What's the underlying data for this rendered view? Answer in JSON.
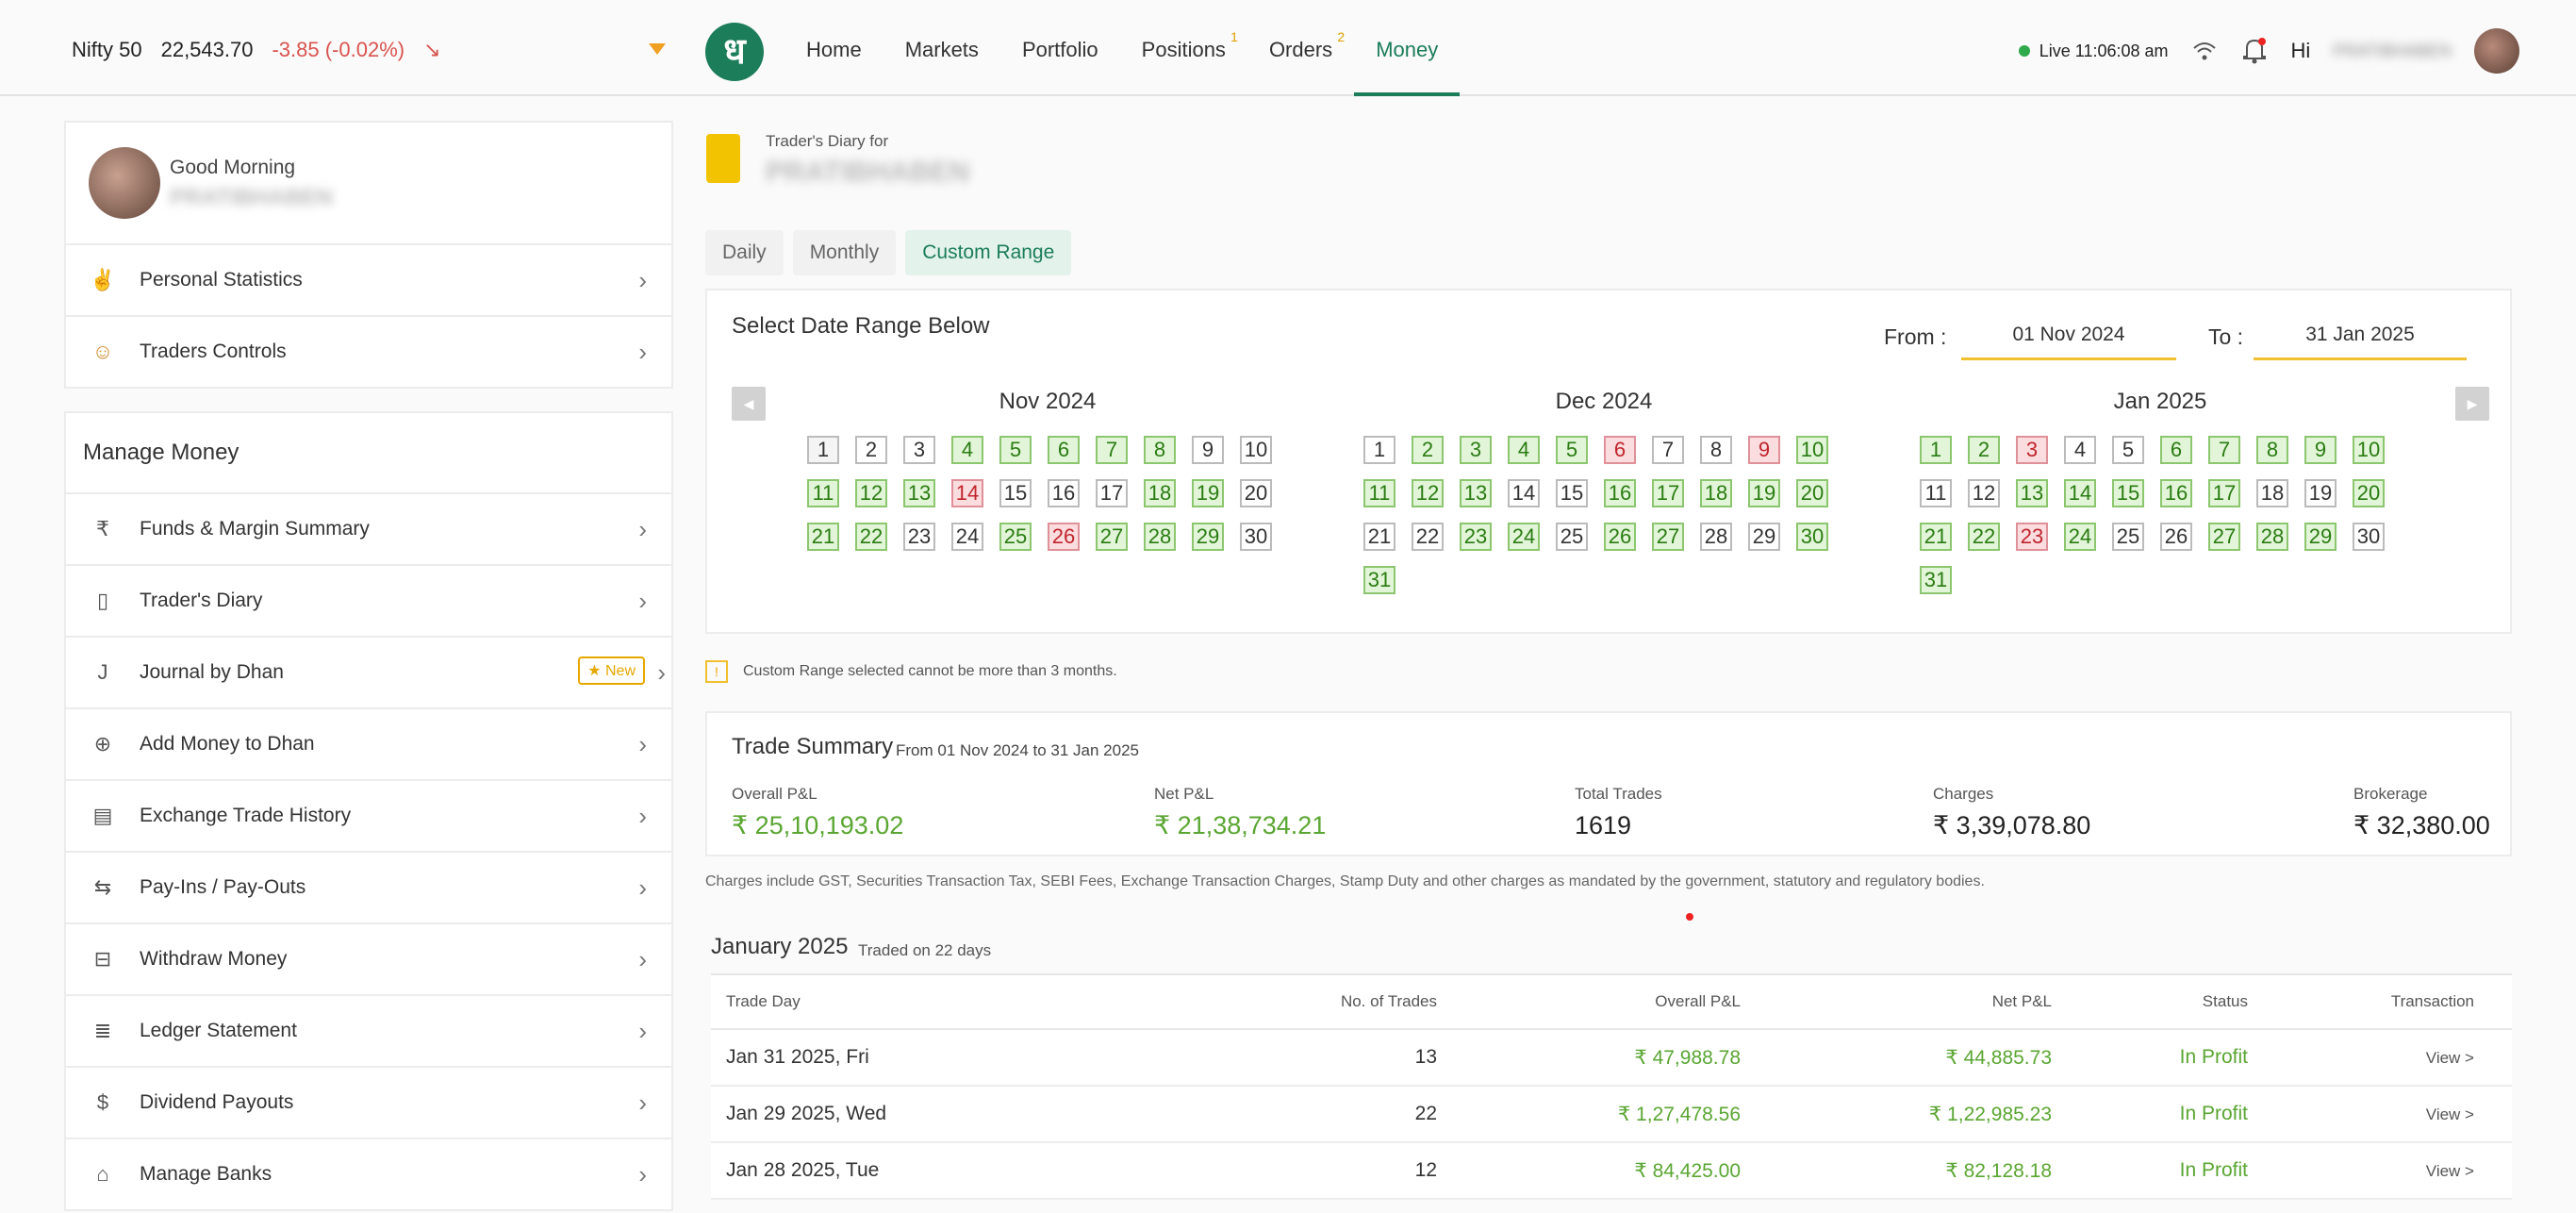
{
  "ticker": {
    "name": "Nifty 50",
    "value": "22,543.70",
    "change": "-3.85 (-0.02%)",
    "arrow": "↘"
  },
  "logo": "ध",
  "nav": {
    "items": [
      {
        "label": "Home",
        "badge": ""
      },
      {
        "label": "Markets",
        "badge": ""
      },
      {
        "label": "Portfolio",
        "badge": ""
      },
      {
        "label": "Positions",
        "badge": "1"
      },
      {
        "label": "Orders",
        "badge": "2"
      },
      {
        "label": "Money",
        "badge": ""
      }
    ]
  },
  "status": {
    "live": "Live 11:06:08 am",
    "greeting": "Hi",
    "user_blurred": "PRATIBHABEN"
  },
  "sidebar": {
    "greeting": "Good Morning",
    "name_blurred": "PRATIBHABEN",
    "top_items": [
      {
        "label": "Personal Statistics",
        "icon": "✌"
      },
      {
        "label": "Traders Controls",
        "icon": "☺"
      }
    ],
    "section": "Manage Money",
    "items": [
      {
        "label": "Funds & Margin Summary",
        "icon": "₹"
      },
      {
        "label": "Trader's Diary",
        "icon": "▯"
      },
      {
        "label": "Journal by Dhan",
        "icon": "J",
        "badge": "★ New"
      },
      {
        "label": "Add Money to Dhan",
        "icon": "⊕"
      },
      {
        "label": "Exchange Trade History",
        "icon": "▤"
      },
      {
        "label": "Pay-Ins / Pay-Outs",
        "icon": "⇆"
      },
      {
        "label": "Withdraw Money",
        "icon": "⊟"
      },
      {
        "label": "Ledger Statement",
        "icon": "≣"
      },
      {
        "label": "Dividend Payouts",
        "icon": "$"
      },
      {
        "label": "Manage Banks",
        "icon": "⌂"
      }
    ]
  },
  "diary": {
    "for_label": "Trader's Diary for",
    "name_blurred": "PRATIBHABEN"
  },
  "tabs": [
    "Daily",
    "Monthly",
    "Custom Range"
  ],
  "range": {
    "title": "Select Date Range Below",
    "from_label": "From :",
    "from_value": "01 Nov 2024",
    "to_label": "To :",
    "to_value": "31 Jan 2025"
  },
  "calendars": [
    {
      "title": "Nov 2024",
      "days": [
        [
          1,
          "n"
        ],
        [
          2,
          ""
        ],
        [
          3,
          ""
        ],
        [
          4,
          "g"
        ],
        [
          5,
          "g"
        ],
        [
          6,
          "g"
        ],
        [
          7,
          "g"
        ],
        [
          8,
          "g"
        ],
        [
          9,
          ""
        ],
        [
          10,
          ""
        ],
        [
          11,
          "g"
        ],
        [
          12,
          "g"
        ],
        [
          13,
          "g"
        ],
        [
          14,
          "r"
        ],
        [
          15,
          ""
        ],
        [
          16,
          ""
        ],
        [
          17,
          ""
        ],
        [
          18,
          "g"
        ],
        [
          19,
          "g"
        ],
        [
          20,
          ""
        ],
        [
          21,
          "g"
        ],
        [
          22,
          "g"
        ],
        [
          23,
          ""
        ],
        [
          24,
          ""
        ],
        [
          25,
          "g"
        ],
        [
          26,
          "r"
        ],
        [
          27,
          "g"
        ],
        [
          28,
          "g"
        ],
        [
          29,
          "g"
        ],
        [
          30,
          ""
        ]
      ]
    },
    {
      "title": "Dec 2024",
      "days": [
        [
          1,
          ""
        ],
        [
          2,
          "g"
        ],
        [
          3,
          "g"
        ],
        [
          4,
          "g"
        ],
        [
          5,
          "g"
        ],
        [
          6,
          "r"
        ],
        [
          7,
          ""
        ],
        [
          8,
          ""
        ],
        [
          9,
          "r"
        ],
        [
          10,
          "g"
        ],
        [
          11,
          "g"
        ],
        [
          12,
          "g"
        ],
        [
          13,
          "g"
        ],
        [
          14,
          ""
        ],
        [
          15,
          ""
        ],
        [
          16,
          "g"
        ],
        [
          17,
          "g"
        ],
        [
          18,
          "g"
        ],
        [
          19,
          "g"
        ],
        [
          20,
          "g"
        ],
        [
          21,
          ""
        ],
        [
          22,
          ""
        ],
        [
          23,
          "g"
        ],
        [
          24,
          "g"
        ],
        [
          25,
          ""
        ],
        [
          26,
          "g"
        ],
        [
          27,
          "g"
        ],
        [
          28,
          ""
        ],
        [
          29,
          ""
        ],
        [
          30,
          "g"
        ],
        [
          31,
          "g"
        ]
      ]
    },
    {
      "title": "Jan 2025",
      "days": [
        [
          1,
          "g"
        ],
        [
          2,
          "g"
        ],
        [
          3,
          "r"
        ],
        [
          4,
          ""
        ],
        [
          5,
          ""
        ],
        [
          6,
          "g"
        ],
        [
          7,
          "g"
        ],
        [
          8,
          "g"
        ],
        [
          9,
          "g"
        ],
        [
          10,
          "g"
        ],
        [
          11,
          ""
        ],
        [
          12,
          ""
        ],
        [
          13,
          "g"
        ],
        [
          14,
          "g"
        ],
        [
          15,
          "g"
        ],
        [
          16,
          "g"
        ],
        [
          17,
          "g"
        ],
        [
          18,
          ""
        ],
        [
          19,
          ""
        ],
        [
          20,
          "g"
        ],
        [
          21,
          "g"
        ],
        [
          22,
          "g"
        ],
        [
          23,
          "r"
        ],
        [
          24,
          "g"
        ],
        [
          25,
          ""
        ],
        [
          26,
          ""
        ],
        [
          27,
          "g"
        ],
        [
          28,
          "g"
        ],
        [
          29,
          "g"
        ],
        [
          30,
          ""
        ],
        [
          31,
          "g"
        ]
      ]
    }
  ],
  "note": "Custom Range selected cannot be more than 3 months.",
  "summary": {
    "title": "Trade Summary",
    "range": "From 01 Nov 2024 to 31 Jan 2025",
    "metrics": [
      {
        "label": "Overall P&L",
        "value": "₹ 25,10,193.02",
        "green": true
      },
      {
        "label": "Net P&L",
        "value": "₹ 21,38,734.21",
        "green": true
      },
      {
        "label": "Total Trades",
        "value": "1619",
        "green": false
      },
      {
        "label": "Charges",
        "value": "₹ 3,39,078.80",
        "green": false
      },
      {
        "label": "Brokerage",
        "value": "₹ 32,380.00",
        "green": false
      }
    ]
  },
  "disclaimer": "Charges include GST, Securities Transaction Tax, SEBI Fees, Exchange Transaction Charges, Stamp Duty and other charges as mandated by the government, statutory and regulatory bodies.",
  "month": {
    "title": "January 2025",
    "subtitle": "Traded on 22 days",
    "headers": [
      "Trade Day",
      "No. of Trades",
      "Overall P&L",
      "Net P&L",
      "Status",
      "Transaction"
    ],
    "rows": [
      {
        "day": "Jan 31 2025, Fri",
        "trades": "13",
        "overall": "₹ 47,988.78",
        "net": "₹ 44,885.73",
        "status": "In Profit",
        "action": "View >"
      },
      {
        "day": "Jan 29 2025, Wed",
        "trades": "22",
        "overall": "₹ 1,27,478.56",
        "net": "₹ 1,22,985.23",
        "status": "In Profit",
        "action": "View >"
      },
      {
        "day": "Jan 28 2025, Tue",
        "trades": "12",
        "overall": "₹ 84,425.00",
        "net": "₹ 82,128.18",
        "status": "In Profit",
        "action": "View >"
      }
    ]
  }
}
